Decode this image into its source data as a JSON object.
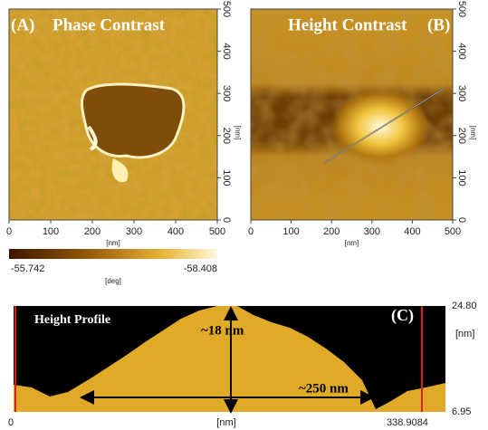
{
  "panels": [
    {
      "label": "(A)",
      "title": "Phase Contrast",
      "x_ticks": [
        0,
        100,
        200,
        300,
        400,
        500
      ],
      "y_ticks": [
        0,
        100,
        200,
        300,
        400,
        500
      ],
      "x_unit": "[nm]",
      "y_unit": "[nm]"
    },
    {
      "label": "(B)",
      "title": "Height Contrast",
      "x_ticks": [
        0,
        100,
        200,
        300,
        400,
        500
      ],
      "y_ticks": [
        0,
        100,
        200,
        300,
        400,
        500
      ],
      "x_unit": "[nm]",
      "y_unit": "[nm]"
    }
  ],
  "colorbar": {
    "min": "-55.742",
    "max": "-58.408",
    "unit": "[deg]"
  },
  "profile": {
    "label": "(C)",
    "title": "Height Profile",
    "annotations": [
      "~18 nm",
      "~250 nm"
    ],
    "y_top": "24.80",
    "y_bottom": "6.95",
    "y_unit": "[nm]",
    "x_start": "0",
    "x_end": "338.9084",
    "x_unit": "[nm]"
  }
}
